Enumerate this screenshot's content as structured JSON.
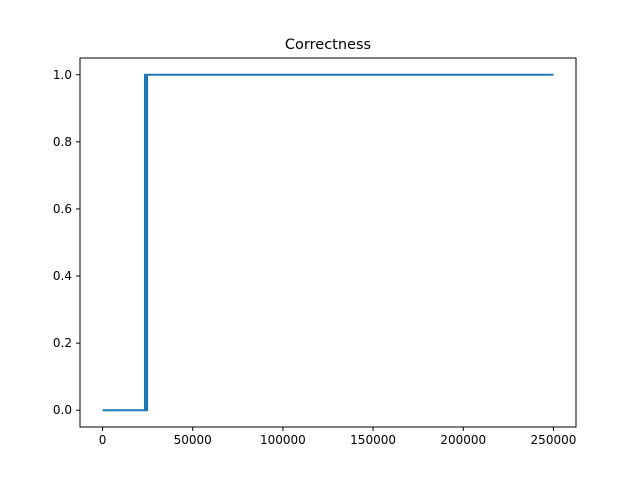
{
  "chart_data": {
    "type": "line",
    "title": "Correctness",
    "xlabel": "",
    "ylabel": "",
    "xlim": [
      -12500,
      262500
    ],
    "ylim": [
      -0.05,
      1.05
    ],
    "x_ticks": [
      0,
      50000,
      100000,
      150000,
      200000,
      250000
    ],
    "x_tick_labels": [
      "0",
      "50000",
      "100000",
      "150000",
      "200000",
      "250000"
    ],
    "y_ticks": [
      0.0,
      0.2,
      0.4,
      0.6,
      0.8,
      1.0
    ],
    "y_tick_labels": [
      "0.0",
      "0.2",
      "0.4",
      "0.6",
      "0.8",
      "1.0"
    ],
    "grid": false,
    "series": [
      {
        "name": "correctness",
        "color": "#1f77b4",
        "x": [
          0,
          23500,
          23500,
          23700,
          23700,
          23900,
          23900,
          24100,
          24100,
          24300,
          24300,
          24500,
          24500,
          24700,
          24700,
          250000
        ],
        "values": [
          0,
          0,
          1,
          1,
          0,
          0,
          1,
          1,
          0,
          0,
          1,
          1,
          0,
          0,
          1,
          1
        ]
      }
    ]
  }
}
